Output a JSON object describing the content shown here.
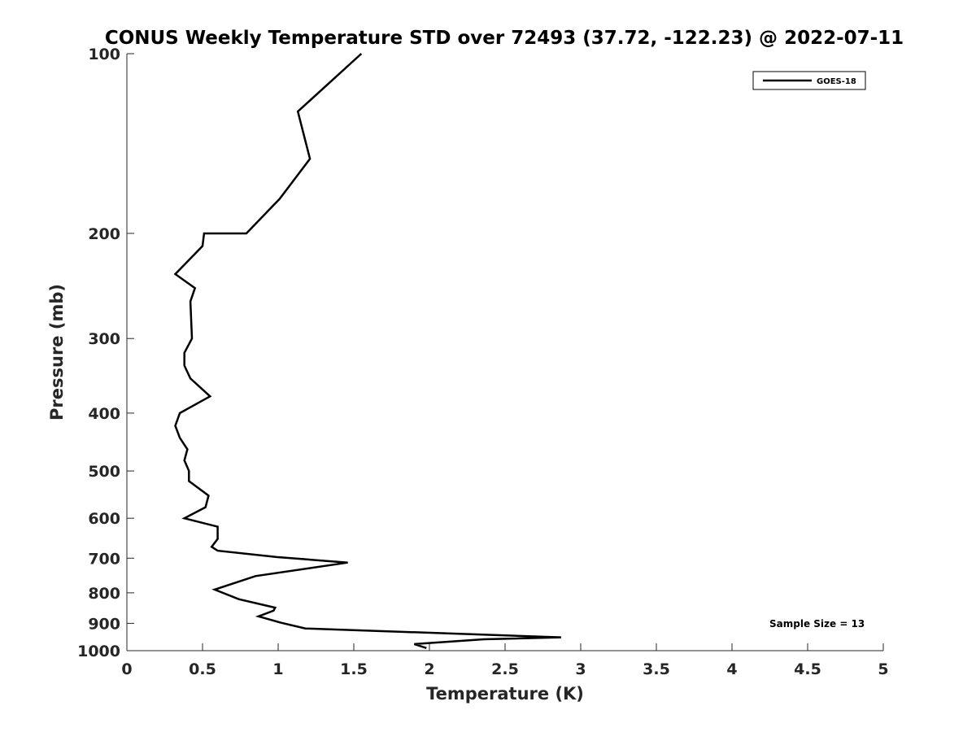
{
  "chart_data": {
    "type": "line",
    "title": "CONUS Weekly Temperature STD over 72493 (37.72, -122.23) @ 2022-07-11",
    "xlabel": "Temperature (K)",
    "ylabel": "Pressure (mb)",
    "xlim": [
      0,
      5
    ],
    "ylim": [
      100,
      1000
    ],
    "y_scale": "log",
    "y_reversed": true,
    "x_ticks": [
      0,
      0.5,
      1,
      1.5,
      2,
      2.5,
      3,
      3.5,
      4,
      4.5,
      5
    ],
    "x_tick_labels": [
      "0",
      "0.5",
      "1",
      "1.5",
      "2",
      "2.5",
      "3",
      "3.5",
      "4",
      "4.5",
      "5"
    ],
    "y_ticks": [
      100,
      200,
      300,
      400,
      500,
      600,
      700,
      800,
      900,
      1000
    ],
    "y_tick_labels": [
      "100",
      "200",
      "300",
      "400",
      "500",
      "600",
      "700",
      "800",
      "900",
      "1000"
    ],
    "grid": false,
    "legend_position": "top-right",
    "series": [
      {
        "name": "GOES-18",
        "color": "#000000",
        "points": [
          [
            1.55,
            100
          ],
          [
            1.13,
            125
          ],
          [
            1.21,
            150
          ],
          [
            1.01,
            175
          ],
          [
            0.79,
            200
          ],
          [
            0.51,
            200
          ],
          [
            0.5,
            210
          ],
          [
            0.32,
            234
          ],
          [
            0.45,
            247
          ],
          [
            0.42,
            260
          ],
          [
            0.43,
            300
          ],
          [
            0.38,
            317
          ],
          [
            0.38,
            333
          ],
          [
            0.42,
            350
          ],
          [
            0.55,
            375
          ],
          [
            0.35,
            400
          ],
          [
            0.32,
            420
          ],
          [
            0.35,
            440
          ],
          [
            0.4,
            460
          ],
          [
            0.38,
            480
          ],
          [
            0.41,
            500
          ],
          [
            0.41,
            520
          ],
          [
            0.54,
            550
          ],
          [
            0.52,
            575
          ],
          [
            0.38,
            600
          ],
          [
            0.6,
            620
          ],
          [
            0.6,
            650
          ],
          [
            0.56,
            670
          ],
          [
            0.6,
            680
          ],
          [
            0.99,
            697
          ],
          [
            1.46,
            712
          ],
          [
            0.85,
            750
          ],
          [
            0.58,
            790
          ],
          [
            0.74,
            820
          ],
          [
            0.98,
            847
          ],
          [
            0.97,
            857
          ],
          [
            0.87,
            876
          ],
          [
            1.02,
            898
          ],
          [
            1.18,
            918
          ],
          [
            2.87,
            950
          ],
          [
            2.36,
            957
          ],
          [
            1.9,
            975
          ],
          [
            1.98,
            990
          ]
        ]
      }
    ],
    "annotations": [
      {
        "text": "Sample Size = 13",
        "x": 4.5,
        "y": 918
      }
    ]
  }
}
